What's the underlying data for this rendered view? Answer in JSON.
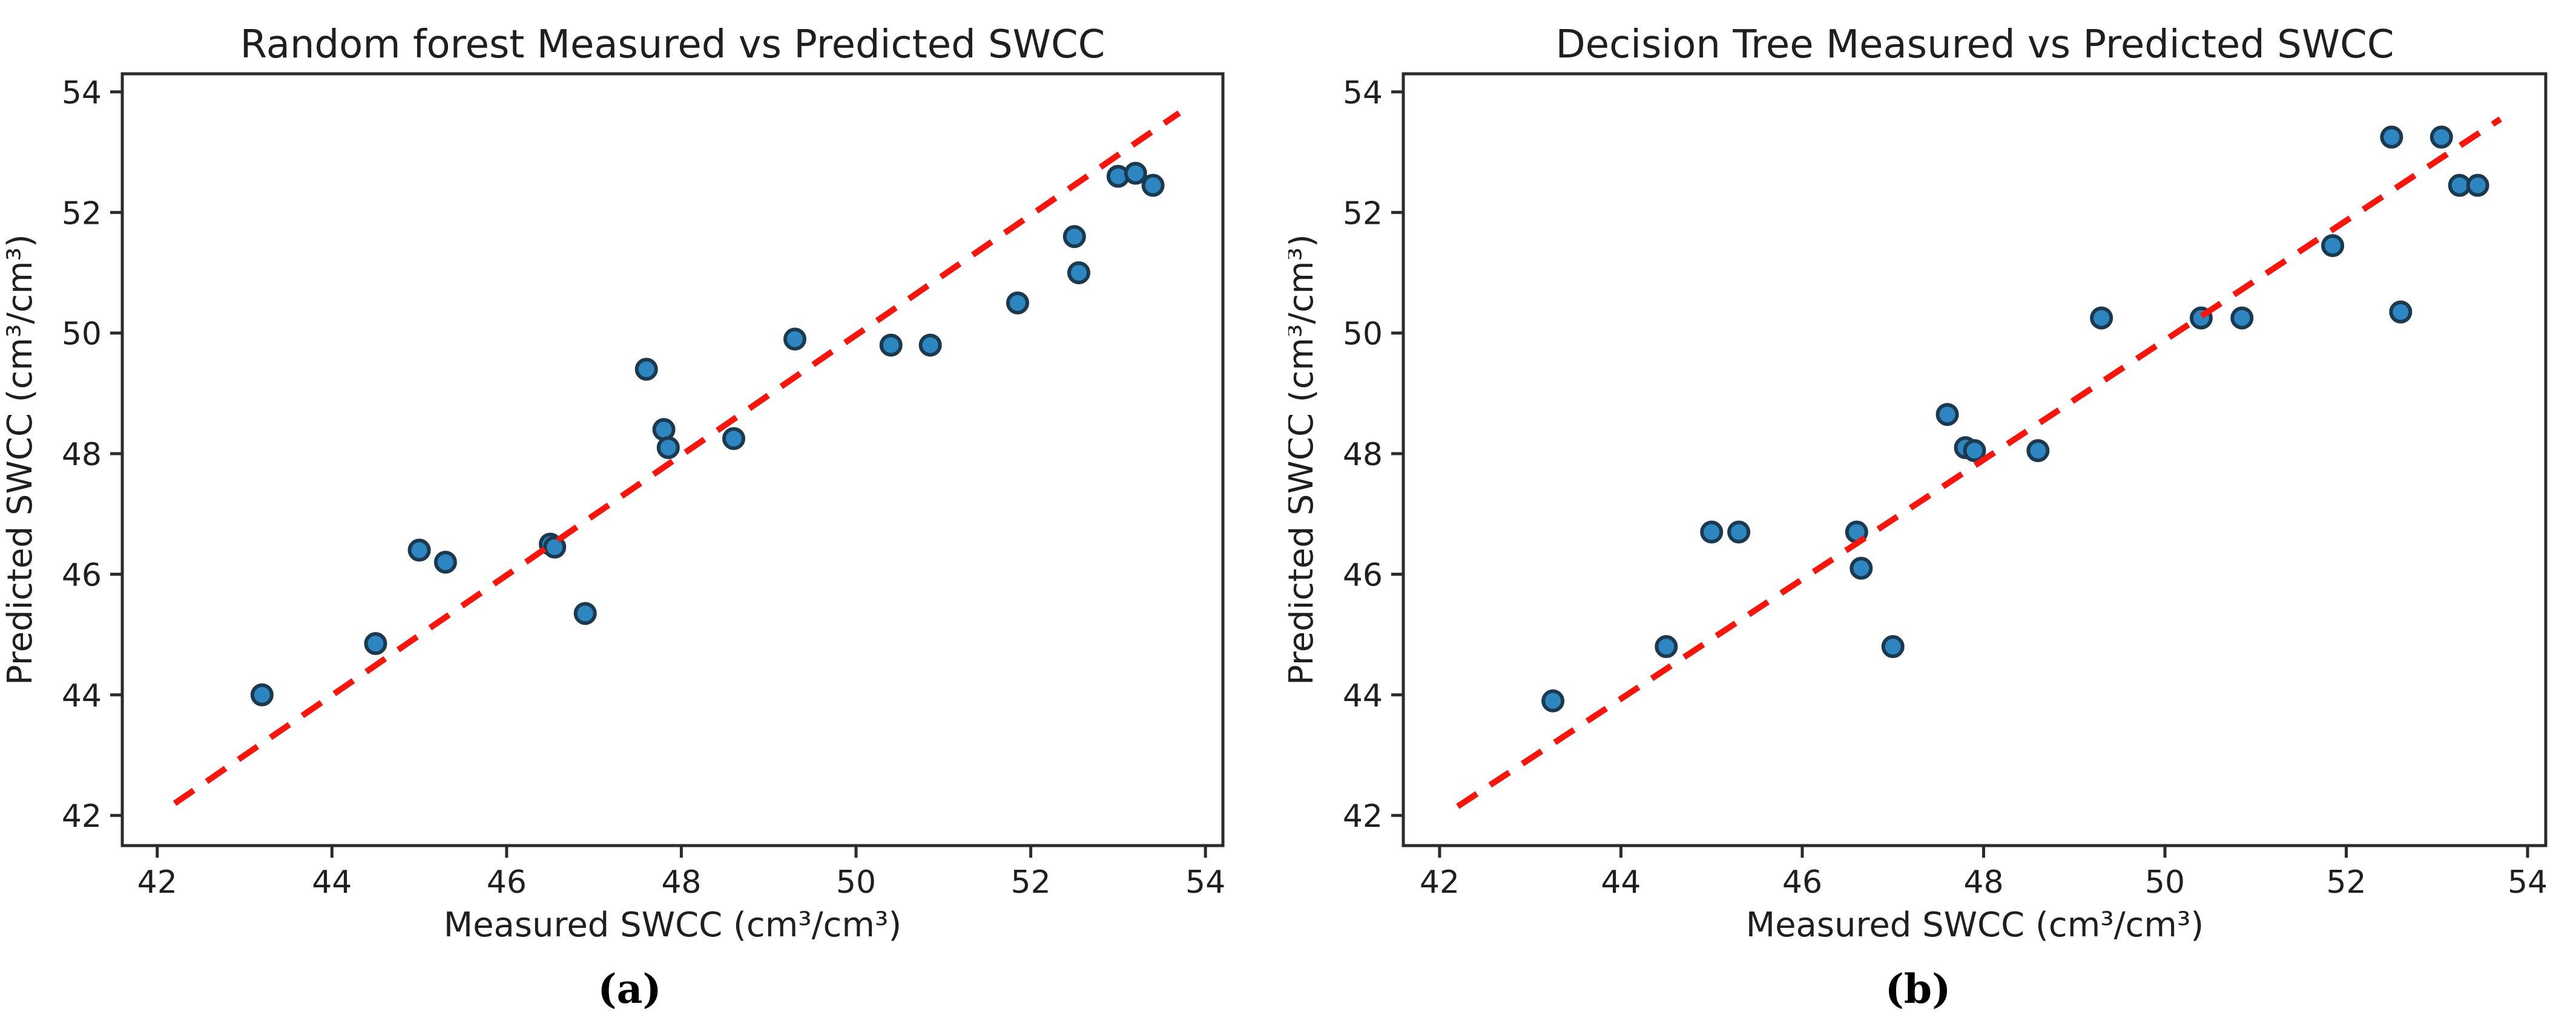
{
  "figure": {
    "colors": {
      "marker_fill": "#2e86c1",
      "marker_edge": "#1b3a50",
      "trend_line": "#f8150c",
      "axis": "#2b2b2b",
      "text": "#1f1f1f",
      "background": "#ffffff"
    }
  },
  "chart_data": [
    {
      "type": "scatter",
      "title": "Random forest Measured vs Predicted SWCC",
      "xlabel": "Measured SWCC (cm³/cm³)",
      "ylabel": "Predicted SWCC (cm³/cm³)",
      "sublabel": "(a)",
      "xlim": [
        41.6,
        54.2
      ],
      "ylim": [
        41.5,
        54.3
      ],
      "xticks": [
        42,
        44,
        46,
        48,
        50,
        52,
        54
      ],
      "yticks": [
        42,
        44,
        46,
        48,
        50,
        52,
        54
      ],
      "grid": false,
      "legend": "none",
      "identity_line": {
        "x1": 42.2,
        "y1": 42.2,
        "x2": 53.7,
        "y2": 53.65,
        "style": "dashed"
      },
      "points": [
        [
          43.2,
          44.0
        ],
        [
          44.5,
          44.85
        ],
        [
          45.0,
          46.4
        ],
        [
          45.3,
          46.2
        ],
        [
          46.5,
          46.5
        ],
        [
          46.55,
          46.45
        ],
        [
          46.9,
          45.35
        ],
        [
          47.6,
          49.4
        ],
        [
          47.8,
          48.4
        ],
        [
          47.85,
          48.1
        ],
        [
          48.6,
          48.25
        ],
        [
          49.3,
          49.9
        ],
        [
          50.4,
          49.8
        ],
        [
          50.85,
          49.8
        ],
        [
          51.85,
          50.5
        ],
        [
          52.5,
          51.6
        ],
        [
          52.55,
          51.0
        ],
        [
          53.0,
          52.6
        ],
        [
          53.2,
          52.65
        ],
        [
          53.4,
          52.45
        ]
      ]
    },
    {
      "type": "scatter",
      "title": "Decision Tree Measured vs Predicted SWCC",
      "xlabel": "Measured SWCC (cm³/cm³)",
      "ylabel": "Predicted SWCC (cm³/cm³)",
      "sublabel": "(b)",
      "xlim": [
        41.6,
        54.2
      ],
      "ylim": [
        41.5,
        54.3
      ],
      "xticks": [
        42,
        44,
        46,
        48,
        50,
        52,
        54
      ],
      "yticks": [
        42,
        44,
        46,
        48,
        50,
        52,
        54
      ],
      "grid": false,
      "legend": "none",
      "identity_line": {
        "x1": 42.2,
        "y1": 42.15,
        "x2": 53.7,
        "y2": 53.55,
        "style": "dashed"
      },
      "points": [
        [
          43.25,
          43.9
        ],
        [
          44.5,
          44.8
        ],
        [
          45.0,
          46.7
        ],
        [
          45.3,
          46.7
        ],
        [
          46.6,
          46.7
        ],
        [
          46.65,
          46.1
        ],
        [
          47.0,
          44.8
        ],
        [
          47.6,
          48.65
        ],
        [
          47.8,
          48.1
        ],
        [
          47.9,
          48.05
        ],
        [
          48.6,
          48.05
        ],
        [
          49.3,
          50.25
        ],
        [
          50.4,
          50.25
        ],
        [
          50.85,
          50.25
        ],
        [
          51.85,
          51.45
        ],
        [
          52.5,
          53.25
        ],
        [
          52.6,
          50.35
        ],
        [
          53.05,
          53.25
        ],
        [
          53.25,
          52.45
        ],
        [
          53.45,
          52.45
        ]
      ]
    }
  ]
}
